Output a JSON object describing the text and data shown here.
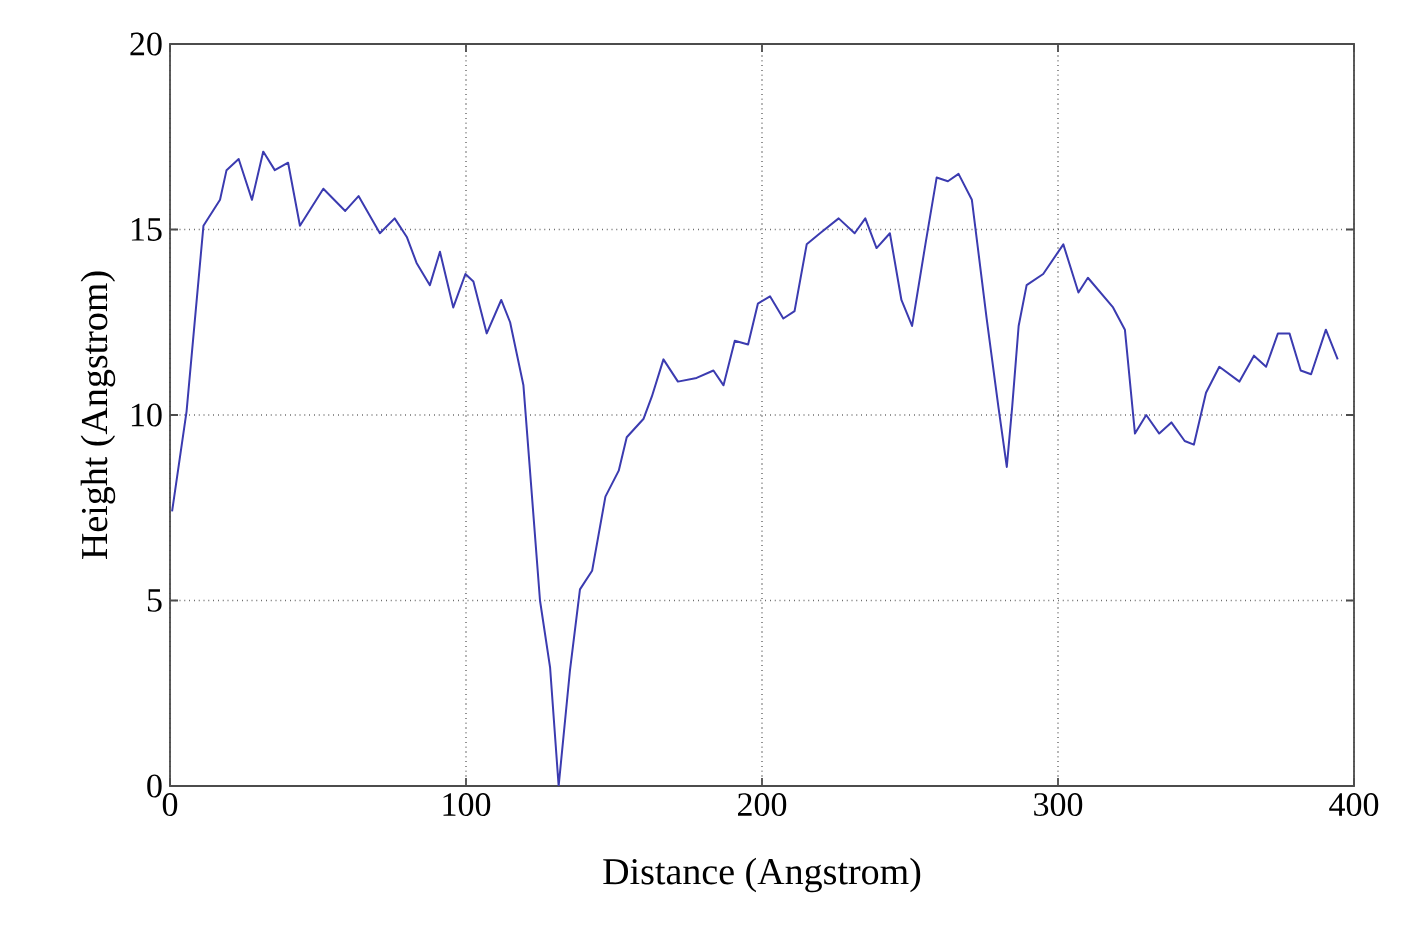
{
  "chart_data": {
    "type": "line",
    "xlabel": "Distance (Angstrom)",
    "ylabel": "Height (Angstrom)",
    "xlim": [
      0,
      400
    ],
    "ylim": [
      0,
      20
    ],
    "xticks": [
      0,
      100,
      200,
      300,
      400
    ],
    "yticks": [
      0,
      5,
      10,
      15,
      20
    ],
    "grid": true,
    "x": [
      0.7,
      5.6,
      11.3,
      16.9,
      19.1,
      23.2,
      27.7,
      31.5,
      35.4,
      39.9,
      43.9,
      51.8,
      59.2,
      63.7,
      70.9,
      75.9,
      80.0,
      83.3,
      87.8,
      91.2,
      95.7,
      99.8,
      102.5,
      107.0,
      111.9,
      114.9,
      119.4,
      125.0,
      128.4,
      131.3,
      135.1,
      138.5,
      142.6,
      147.1,
      151.6,
      154.3,
      160.0,
      162.8,
      166.7,
      171.6,
      177.9,
      183.6,
      187.0,
      190.8,
      195.3,
      198.6,
      202.7,
      207.2,
      211.0,
      215.1,
      219.6,
      225.9,
      231.3,
      234.9,
      238.7,
      243.2,
      247.1,
      250.7,
      255.2,
      259.0,
      262.8,
      266.4,
      270.9,
      275.9,
      279.9,
      282.7,
      284.5,
      286.7,
      289.4,
      295.0,
      301.8,
      306.9,
      310.1,
      318.6,
      322.6,
      326.0,
      329.8,
      334.2,
      338.3,
      342.8,
      345.9,
      350.0,
      354.5,
      361.3,
      366.2,
      370.3,
      374.3,
      378.2,
      382.0,
      385.5,
      390.5,
      394.5
    ],
    "series": [
      {
        "color": "#3b3bb0",
        "values": [
          7.4,
          10.1,
          15.1,
          15.8,
          16.6,
          16.9,
          15.8,
          17.1,
          16.6,
          16.8,
          15.1,
          16.1,
          15.5,
          15.9,
          14.9,
          15.3,
          14.8,
          14.1,
          13.5,
          14.4,
          12.9,
          13.8,
          13.6,
          12.2,
          13.1,
          12.5,
          10.8,
          5.0,
          3.2,
          0,
          3.1,
          5.3,
          5.8,
          7.8,
          8.5,
          9.4,
          9.9,
          10.5,
          11.5,
          10.9,
          11.0,
          11.2,
          10.8,
          12.0,
          11.9,
          13.0,
          13.2,
          12.6,
          12.8,
          14.6,
          14.9,
          15.3,
          14.9,
          15.3,
          14.5,
          14.9,
          13.1,
          12.4,
          14.6,
          16.4,
          16.3,
          16.5,
          15.8,
          12.6,
          10.2,
          8.6,
          10.2,
          12.4,
          13.5,
          13.8,
          14.6,
          13.3,
          13.7,
          12.9,
          12.3,
          9.5,
          10.0,
          9.5,
          9.8,
          9.3,
          9.2,
          10.6,
          11.3,
          10.9,
          11.6,
          11.3,
          12.2,
          12.2,
          11.2,
          11.1,
          12.3,
          11.5
        ]
      }
    ]
  }
}
